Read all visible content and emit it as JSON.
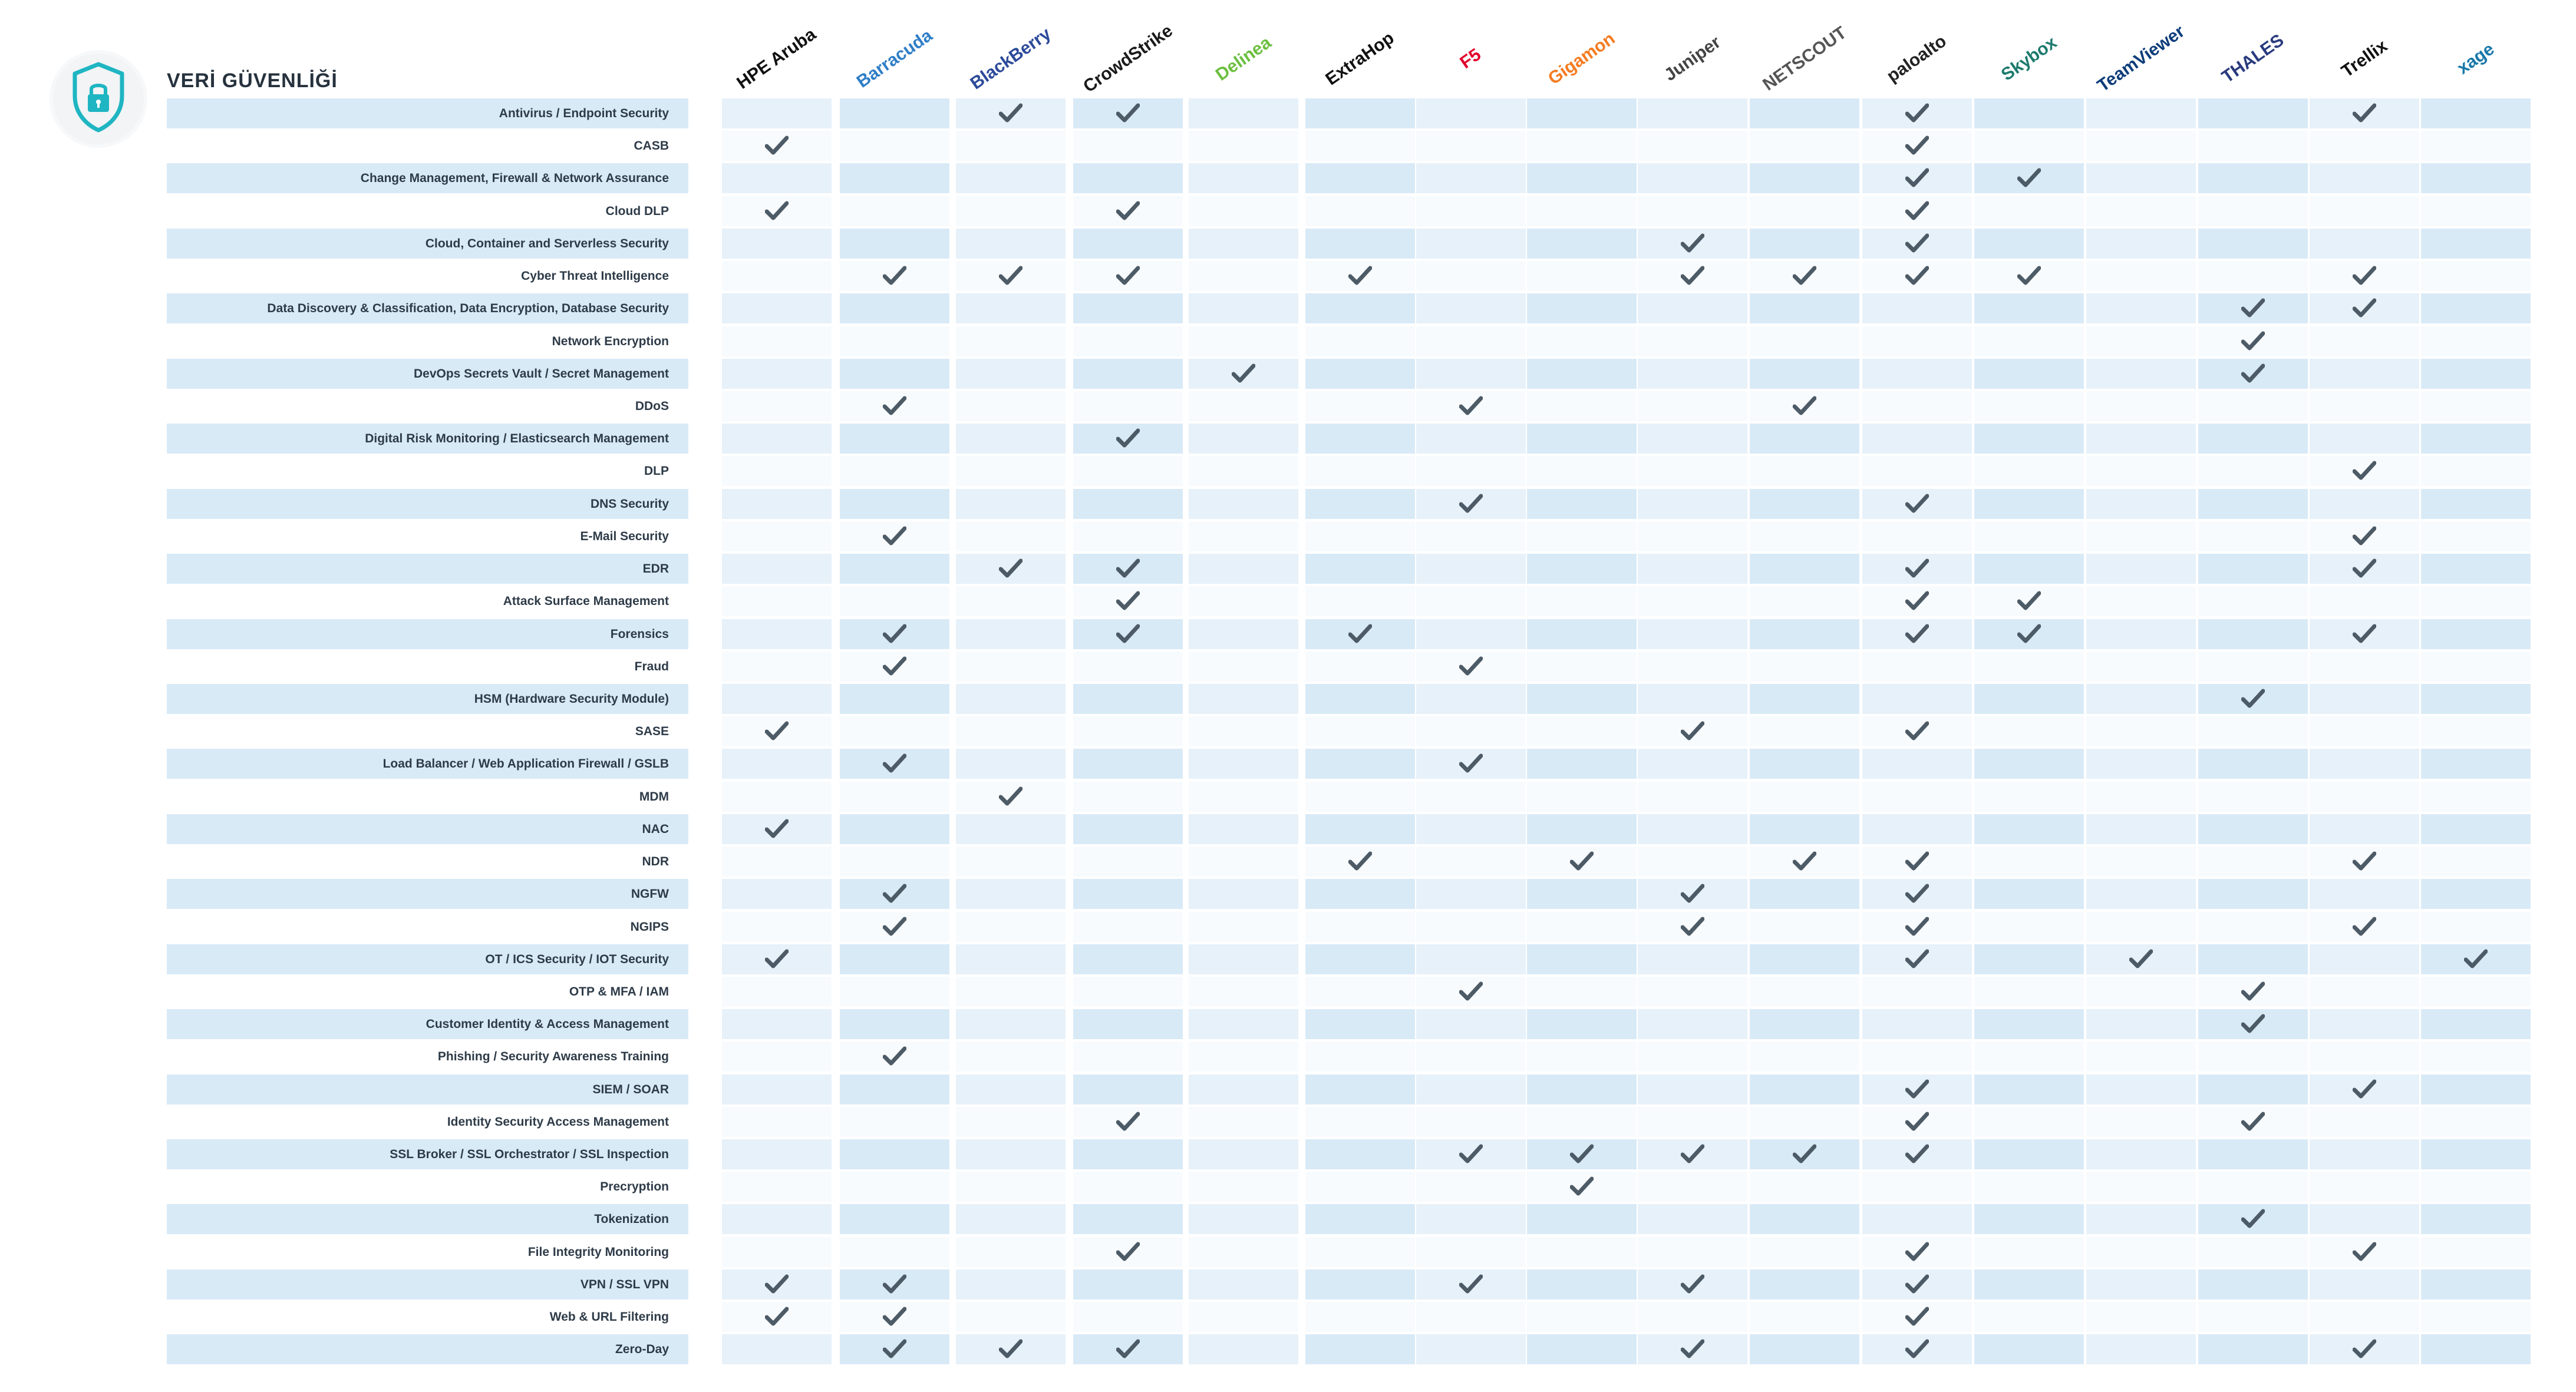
{
  "title": "VERİ GÜVENLİĞİ",
  "header_icon": "shield-lock-icon",
  "colors": {
    "band_dark": "#d9eaf7",
    "band_light": "#e7f1f9",
    "band_white": "#f8fbfe",
    "check": "#4d5b67",
    "shield": "#1fb5c2"
  },
  "vendors": [
    {
      "label": "HPE Aruba",
      "color": "#111111"
    },
    {
      "label": "Barracuda",
      "color": "#2f7ec7"
    },
    {
      "label": "BlackBerry",
      "color": "#2c4a9a"
    },
    {
      "label": "CrowdStrike",
      "color": "#1a1a1a"
    },
    {
      "label": "Delinea",
      "color": "#6cbf3f"
    },
    {
      "label": "ExtraHop",
      "color": "#111111"
    },
    {
      "label": "F5",
      "color": "#e4002b"
    },
    {
      "label": "Gigamon",
      "color": "#f47b20"
    },
    {
      "label": "Juniper",
      "color": "#444444"
    },
    {
      "label": "NETSCOUT",
      "color": "#555555"
    },
    {
      "label": "paloalto",
      "color": "#222222"
    },
    {
      "label": "Skybox",
      "color": "#1d7a6e"
    },
    {
      "label": "TeamViewer",
      "color": "#0e3d7a"
    },
    {
      "label": "THALES",
      "color": "#2a3a7e"
    },
    {
      "label": "Trellix",
      "color": "#111111"
    },
    {
      "label": "xage",
      "color": "#1877a8"
    }
  ],
  "rows": [
    {
      "label": "Antivirus / Endpoint Security",
      "checks": [
        2,
        3,
        10,
        14
      ]
    },
    {
      "label": "CASB",
      "checks": [
        0,
        10
      ]
    },
    {
      "label": "Change Management, Firewall & Network Assurance",
      "checks": [
        10,
        11
      ]
    },
    {
      "label": "Cloud DLP",
      "checks": [
        0,
        3,
        10
      ]
    },
    {
      "label": "Cloud, Container and Serverless Security",
      "checks": [
        8,
        10
      ]
    },
    {
      "label": "Cyber Threat Intelligence",
      "checks": [
        1,
        2,
        3,
        5,
        8,
        9,
        10,
        11,
        14
      ]
    },
    {
      "label": "Data Discovery & Classification, Data Encryption, Database Security",
      "checks": [
        13,
        14
      ]
    },
    {
      "label": "Network Encryption",
      "checks": [
        13
      ]
    },
    {
      "label": "DevOps Secrets Vault / Secret Management",
      "checks": [
        4,
        13
      ]
    },
    {
      "label": "DDoS",
      "checks": [
        1,
        6,
        9
      ]
    },
    {
      "label": "Digital Risk Monitoring / Elasticsearch Management",
      "checks": [
        3
      ]
    },
    {
      "label": "DLP",
      "checks": [
        14
      ]
    },
    {
      "label": "DNS Security",
      "checks": [
        6,
        10
      ]
    },
    {
      "label": "E-Mail Security",
      "checks": [
        1,
        14
      ]
    },
    {
      "label": "EDR",
      "checks": [
        2,
        3,
        10,
        14
      ]
    },
    {
      "label": "Attack Surface Management",
      "checks": [
        3,
        10,
        11
      ]
    },
    {
      "label": "Forensics",
      "checks": [
        1,
        3,
        5,
        10,
        11,
        14
      ]
    },
    {
      "label": "Fraud",
      "checks": [
        1,
        6
      ]
    },
    {
      "label": "HSM (Hardware Security Module)",
      "checks": [
        13
      ]
    },
    {
      "label": "SASE",
      "checks": [
        0,
        8,
        10
      ]
    },
    {
      "label": "Load Balancer / Web Application Firewall / GSLB",
      "checks": [
        1,
        6
      ]
    },
    {
      "label": "MDM",
      "checks": [
        2
      ]
    },
    {
      "label": "NAC",
      "checks": [
        0
      ]
    },
    {
      "label": "NDR",
      "checks": [
        5,
        7,
        9,
        10,
        14
      ]
    },
    {
      "label": "NGFW",
      "checks": [
        1,
        8,
        10
      ]
    },
    {
      "label": "NGIPS",
      "checks": [
        1,
        8,
        10,
        14
      ]
    },
    {
      "label": "OT / ICS Security / IOT Security",
      "checks": [
        0,
        10,
        12,
        15
      ]
    },
    {
      "label": "OTP & MFA / IAM",
      "checks": [
        6,
        13
      ]
    },
    {
      "label": "Customer Identity & Access Management",
      "checks": [
        13
      ]
    },
    {
      "label": "Phishing / Security Awareness Training",
      "checks": [
        1
      ]
    },
    {
      "label": "SIEM / SOAR",
      "checks": [
        10,
        14
      ]
    },
    {
      "label": "Identity Security Access Management",
      "checks": [
        3,
        10,
        13
      ]
    },
    {
      "label": "SSL Broker / SSL Orchestrator / SSL Inspection",
      "checks": [
        6,
        7,
        8,
        9,
        10
      ]
    },
    {
      "label": "Precryption",
      "checks": [
        7
      ]
    },
    {
      "label": "Tokenization",
      "checks": [
        13
      ]
    },
    {
      "label": "File Integrity Monitoring",
      "checks": [
        3,
        10,
        14
      ]
    },
    {
      "label": "VPN / SSL VPN",
      "checks": [
        0,
        1,
        6,
        8,
        10
      ]
    },
    {
      "label": "Web & URL Filtering",
      "checks": [
        0,
        1,
        10
      ]
    },
    {
      "label": "Zero-Day",
      "checks": [
        1,
        2,
        3,
        8,
        10,
        14
      ]
    }
  ]
}
